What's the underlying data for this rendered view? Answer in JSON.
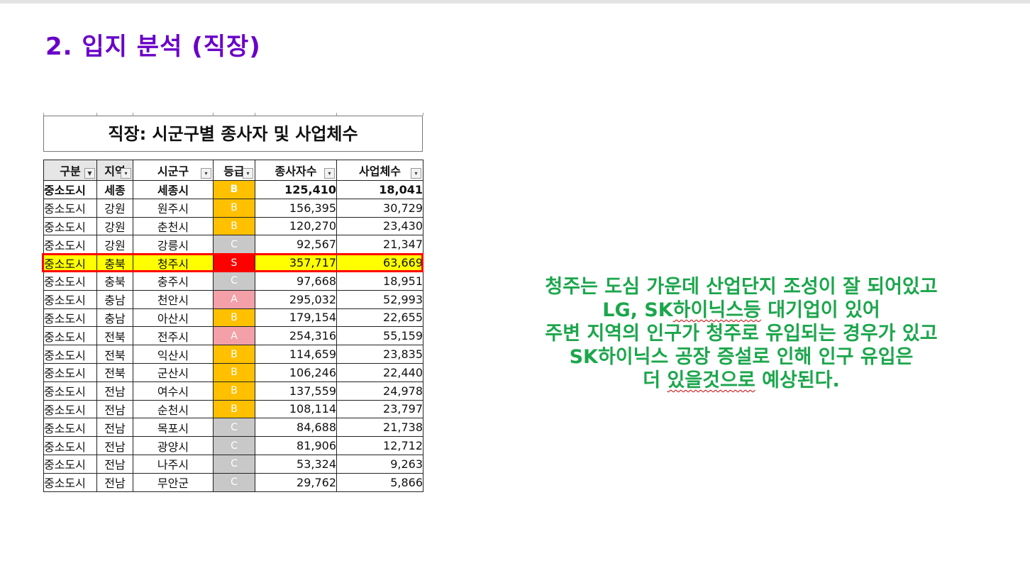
{
  "page_title": "2. 입지 분석 (직장)",
  "table": {
    "title": "직장: 시군구별 종사자 및 사업체수",
    "columns": [
      "구분",
      "지역",
      "시군구",
      "등급",
      "종사자수",
      "사업체수"
    ],
    "rows": [
      {
        "category": "중소도시",
        "region": "세종",
        "city": "세종시",
        "grade": "B",
        "workers": "125,410",
        "businesses": "18,041",
        "bold": true
      },
      {
        "category": "중소도시",
        "region": "강원",
        "city": "원주시",
        "grade": "B",
        "workers": "156,395",
        "businesses": "30,729"
      },
      {
        "category": "중소도시",
        "region": "강원",
        "city": "춘천시",
        "grade": "B",
        "workers": "120,270",
        "businesses": "23,430"
      },
      {
        "category": "중소도시",
        "region": "강원",
        "city": "강릉시",
        "grade": "C",
        "workers": "92,567",
        "businesses": "21,347"
      },
      {
        "category": "중소도시",
        "region": "충북",
        "city": "청주시",
        "grade": "S",
        "workers": "357,717",
        "businesses": "63,669",
        "highlight": true
      },
      {
        "category": "중소도시",
        "region": "충북",
        "city": "충주시",
        "grade": "C",
        "workers": "97,668",
        "businesses": "18,951"
      },
      {
        "category": "중소도시",
        "region": "충남",
        "city": "천안시",
        "grade": "A",
        "workers": "295,032",
        "businesses": "52,993"
      },
      {
        "category": "중소도시",
        "region": "충남",
        "city": "아산시",
        "grade": "B",
        "workers": "179,154",
        "businesses": "22,655"
      },
      {
        "category": "중소도시",
        "region": "전북",
        "city": "전주시",
        "grade": "A",
        "workers": "254,316",
        "businesses": "55,159"
      },
      {
        "category": "중소도시",
        "region": "전북",
        "city": "익산시",
        "grade": "B",
        "workers": "114,659",
        "businesses": "23,835"
      },
      {
        "category": "중소도시",
        "region": "전북",
        "city": "군산시",
        "grade": "B",
        "workers": "106,246",
        "businesses": "22,440"
      },
      {
        "category": "중소도시",
        "region": "전남",
        "city": "여수시",
        "grade": "B",
        "workers": "137,559",
        "businesses": "24,978"
      },
      {
        "category": "중소도시",
        "region": "전남",
        "city": "순천시",
        "grade": "B",
        "workers": "108,114",
        "businesses": "23,797"
      },
      {
        "category": "중소도시",
        "region": "전남",
        "city": "목포시",
        "grade": "C",
        "workers": "84,688",
        "businesses": "21,738"
      },
      {
        "category": "중소도시",
        "region": "전남",
        "city": "광양시",
        "grade": "C",
        "workers": "81,906",
        "businesses": "12,712"
      },
      {
        "category": "중소도시",
        "region": "전남",
        "city": "나주시",
        "grade": "C",
        "workers": "53,324",
        "businesses": "9,263"
      },
      {
        "category": "중소도시",
        "region": "전남",
        "city": "무안군",
        "grade": "C",
        "workers": "29,762",
        "businesses": "5,866"
      }
    ]
  },
  "grade_colors": {
    "S": "#ff0000",
    "A": "#f4a0a8",
    "B": "#ffc000",
    "C": "#c8c8c8"
  },
  "note_lines": [
    "청주는 도심 가운데 산업단지 조성이 잘 되어있고",
    "LG, SK하이닉스등 대기업이 있어",
    "주변 지역의 인구가 청주로 유입되는 경우가 있고",
    "SK하이닉스 공장 증설로 인해 인구 유입은",
    "더 있을것으로 예상된다."
  ],
  "colors": {
    "title": "#6a00c8",
    "note": "#1ca64c",
    "highlight_fill": "#ffff00",
    "highlight_border": "#ff0000"
  }
}
